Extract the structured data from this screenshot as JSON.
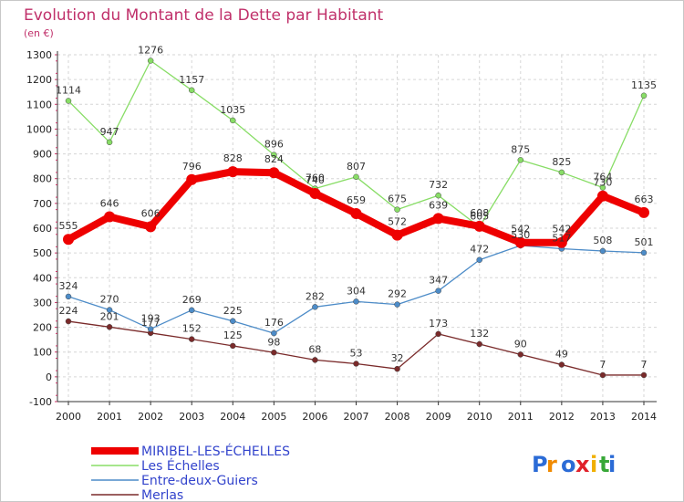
{
  "title": "Evolution du Montant de la Dette par Habitant",
  "subtitle": "(en €)",
  "logo_text": "Proxiti",
  "chart_data": {
    "type": "line",
    "title": "Evolution du Montant de la Dette par Habitant",
    "subtitle": "(en €)",
    "x": [
      "2000",
      "2001",
      "2002",
      "2003",
      "2004",
      "2005",
      "2006",
      "2007",
      "2008",
      "2009",
      "2010",
      "2011",
      "2012",
      "2013",
      "2014"
    ],
    "ylim": [
      -100,
      1300
    ],
    "yticks": [
      -100,
      0,
      100,
      200,
      300,
      400,
      500,
      600,
      700,
      800,
      900,
      1000,
      1100,
      1200,
      1300
    ],
    "grid": true,
    "legend_position": "bottom-left",
    "series": [
      {
        "name": "Merlas",
        "color": "#7a2a2a",
        "values": [
          224,
          201,
          177,
          152,
          125,
          98,
          68,
          53,
          32,
          173,
          132,
          90,
          49,
          7,
          7
        ]
      },
      {
        "name": "Entre-deux-Guiers",
        "color": "#4d8cc8",
        "values": [
          324,
          270,
          193,
          269,
          225,
          176,
          282,
          304,
          292,
          347,
          472,
          530,
          517,
          508,
          501
        ]
      },
      {
        "name": "Les Échelles",
        "color": "#88dd66",
        "values": [
          1114,
          947,
          1276,
          1157,
          1035,
          896,
          760,
          807,
          675,
          732,
          605,
          875,
          825,
          764,
          1135
        ]
      },
      {
        "name": "MIRIBEL-LES-ÉCHELLES",
        "color": "#ee0000",
        "values": [
          555,
          646,
          606,
          796,
          828,
          824,
          740,
          659,
          572,
          639,
          608,
          542,
          542,
          730,
          663
        ]
      }
    ]
  }
}
